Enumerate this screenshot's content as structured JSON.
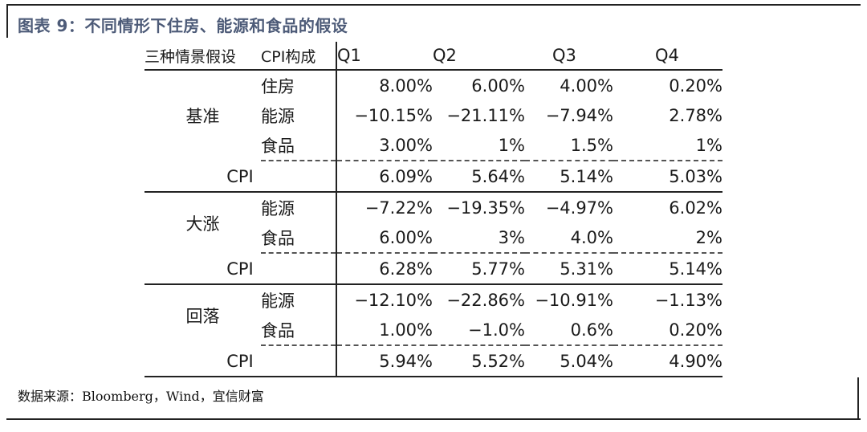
{
  "title": "图表 9：不同情形下住房、能源和食品的假设",
  "header": {
    "scenario": "三种情景假设",
    "component": "CPI构成",
    "quarters": [
      "Q1",
      "Q2",
      "Q3",
      "Q4"
    ]
  },
  "groups": [
    {
      "scenario": "基准",
      "rows": [
        {
          "component": "住房",
          "values": [
            "8.00%",
            "6.00%",
            "4.00%",
            "0.20%"
          ]
        },
        {
          "component": "能源",
          "values": [
            "−10.15%",
            "−21.11%",
            "−7.94%",
            "2.78%"
          ]
        },
        {
          "component": "食品",
          "values": [
            "3.00%",
            "1%",
            "1.5%",
            "1%"
          ]
        }
      ],
      "cpi": {
        "label": "CPI",
        "values": [
          "6.09%",
          "5.64%",
          "5.14%",
          "5.03%"
        ]
      }
    },
    {
      "scenario": "大涨",
      "rows": [
        {
          "component": "能源",
          "values": [
            "−7.22%",
            "−19.35%",
            "−4.97%",
            "6.02%"
          ]
        },
        {
          "component": "食品",
          "values": [
            "6.00%",
            "3%",
            "4.0%",
            "2%"
          ]
        }
      ],
      "cpi": {
        "label": "CPI",
        "values": [
          "6.28%",
          "5.77%",
          "5.31%",
          "5.14%"
        ]
      }
    },
    {
      "scenario": "回落",
      "rows": [
        {
          "component": "能源",
          "values": [
            "−12.10%",
            "−22.86%",
            "−10.91%",
            "−1.13%"
          ]
        },
        {
          "component": "食品",
          "values": [
            "1.00%",
            "−1.0%",
            "0.6%",
            "0.20%"
          ]
        }
      ],
      "cpi": {
        "label": "CPI",
        "values": [
          "5.94%",
          "5.52%",
          "5.04%",
          "4.90%"
        ]
      }
    }
  ],
  "source": "数据来源：Bloomberg，Wind，宜信财富"
}
